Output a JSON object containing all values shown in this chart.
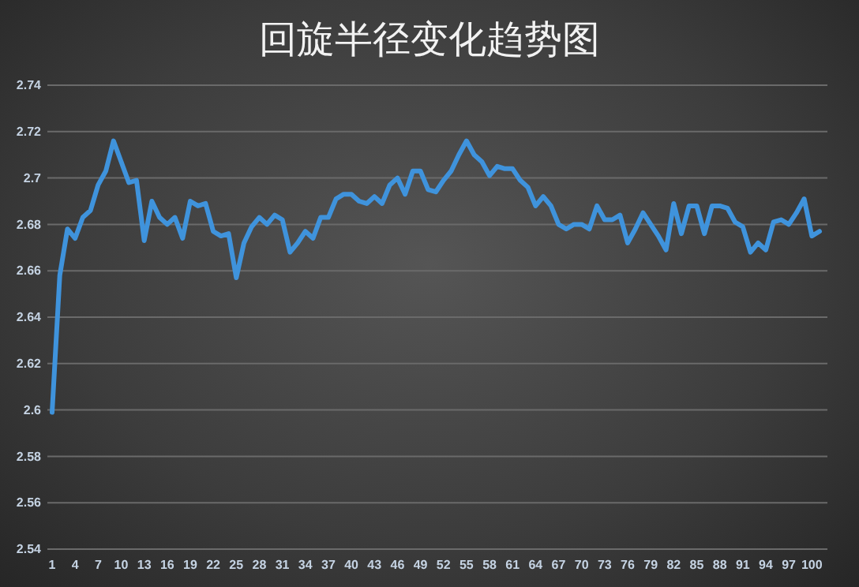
{
  "chart_data": {
    "type": "line",
    "title": "回旋半径变化趋势图",
    "categories": [
      "1",
      null,
      null,
      "4",
      null,
      null,
      "7",
      null,
      null,
      "10",
      null,
      null,
      "13",
      null,
      null,
      "16",
      null,
      null,
      "19",
      null,
      null,
      "22",
      null,
      null,
      "25",
      null,
      null,
      "28",
      null,
      null,
      "31",
      null,
      null,
      "34",
      null,
      null,
      "37",
      null,
      null,
      "40",
      null,
      null,
      "43",
      null,
      null,
      "46",
      null,
      null,
      "49",
      null,
      null,
      "52",
      null,
      null,
      "55",
      null,
      null,
      "58",
      null,
      null,
      "61",
      null,
      null,
      "64",
      null,
      null,
      "67",
      null,
      null,
      "70",
      null,
      null,
      "73",
      null,
      null,
      "76",
      null,
      null,
      "79",
      null,
      null,
      "82",
      null,
      null,
      "85",
      null,
      null,
      "88",
      null,
      null,
      "91",
      null,
      null,
      "94",
      null,
      null,
      "97",
      null,
      null,
      "100",
      null
    ],
    "series": [
      {
        "color": "#3f93dc",
        "values": [
          2.599,
          2.658,
          2.678,
          2.674,
          2.683,
          2.686,
          2.697,
          2.703,
          2.716,
          2.707,
          2.698,
          2.699,
          2.673,
          2.69,
          2.683,
          2.68,
          2.683,
          2.674,
          2.69,
          2.688,
          2.689,
          2.677,
          2.675,
          2.676,
          2.657,
          2.672,
          2.679,
          2.683,
          2.68,
          2.684,
          2.682,
          2.668,
          2.672,
          2.677,
          2.674,
          2.683,
          2.683,
          2.691,
          2.693,
          2.693,
          2.69,
          2.689,
          2.692,
          2.689,
          2.697,
          2.7,
          2.693,
          2.703,
          2.703,
          2.695,
          2.694,
          2.699,
          2.703,
          2.71,
          2.716,
          2.71,
          2.707,
          2.701,
          2.705,
          2.704,
          2.704,
          2.699,
          2.696,
          2.688,
          2.692,
          2.688,
          2.68,
          2.678,
          2.68,
          2.68,
          2.678,
          2.688,
          2.682,
          2.682,
          2.684,
          2.672,
          2.678,
          2.685,
          2.68,
          2.675,
          2.669,
          2.689,
          2.676,
          2.688,
          2.688,
          2.676,
          2.688,
          2.688,
          2.687,
          2.681,
          2.679,
          2.668,
          2.672,
          2.669,
          2.681,
          2.682,
          2.68,
          2.685,
          2.691,
          2.675,
          2.677
        ]
      }
    ],
    "ylim": [
      2.54,
      2.74
    ],
    "yticks": [
      2.54,
      2.56,
      2.58,
      2.6,
      2.62,
      2.64,
      2.66,
      2.68,
      2.7,
      2.72,
      2.74
    ],
    "grid": "y",
    "marker": "none",
    "line_style": "solid"
  }
}
